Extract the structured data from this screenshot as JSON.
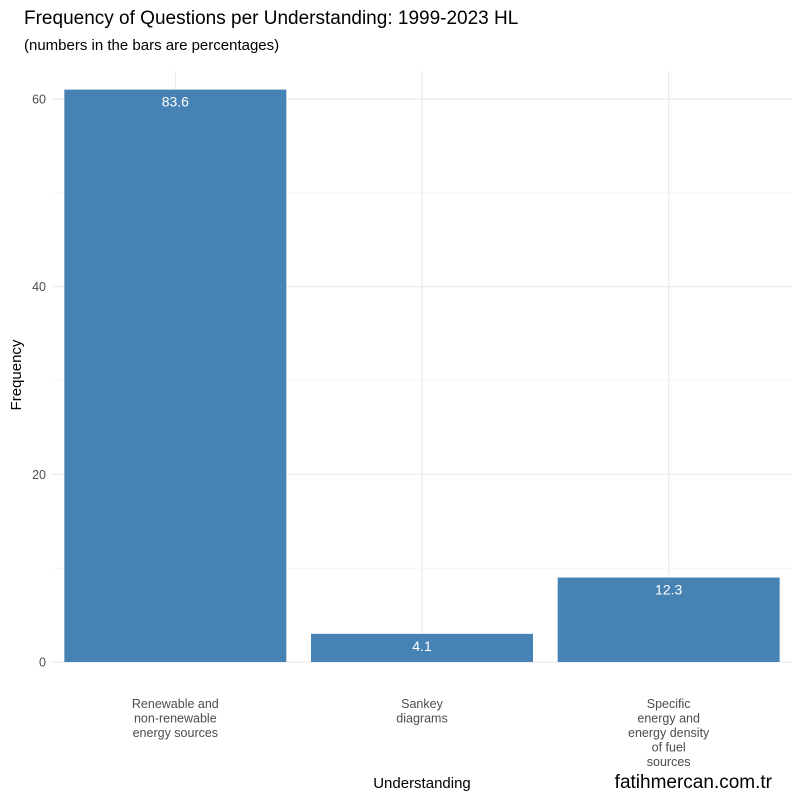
{
  "chart_data": {
    "type": "bar",
    "title": "Frequency of Questions per Understanding: 1999-2023 HL",
    "subtitle": "(numbers in the bars are percentages)",
    "xlabel": "Understanding",
    "ylabel": "Frequency",
    "caption": "fatihmercan.com.tr",
    "categories": [
      [
        "Renewable and",
        "non-renewable",
        "energy sources"
      ],
      [
        "Sankey",
        "diagrams"
      ],
      [
        "Specific",
        "energy and",
        "energy density",
        "of fuel",
        "sources"
      ]
    ],
    "values": [
      61,
      3,
      9
    ],
    "bar_labels": [
      "83.6",
      "4.1",
      "12.3"
    ],
    "ylim": [
      0,
      63
    ],
    "yticks": [
      0,
      20,
      40,
      60
    ],
    "grid": true,
    "colors": {
      "bar": "#4682b4",
      "grid_major": "#ebebeb",
      "grid_minor": "#f3f3f3"
    }
  }
}
